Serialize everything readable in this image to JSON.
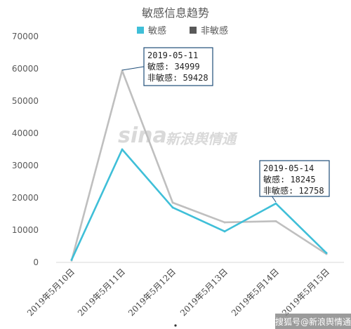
{
  "chart_data": {
    "type": "line",
    "title": "敏感信息趋势",
    "categories": [
      "2019年5月10日",
      "2019年5月11日",
      "2019年5月12日",
      "2019年5月13日",
      "2019年5月14日",
      "2019年5月15日"
    ],
    "series": [
      {
        "name": "敏感",
        "color": "#3fbfd8",
        "values": [
          800,
          34999,
          17000,
          9600,
          18245,
          2900
        ]
      },
      {
        "name": "非敏感",
        "color": "#bfbfbf",
        "values": [
          600,
          59428,
          18500,
          12400,
          12758,
          2600
        ]
      }
    ],
    "legend_swatches": [
      "#3fbfd8",
      "#595959"
    ],
    "yticks": [
      0,
      10000,
      20000,
      30000,
      40000,
      50000,
      60000,
      70000
    ],
    "ylim": [
      0,
      70000
    ],
    "grid": false,
    "legend_position": "top",
    "annotations": [
      {
        "category_index": 1,
        "lines": [
          "2019-05-11",
          "敏感: 34999",
          "非敏感: 59428"
        ]
      },
      {
        "category_index": 4,
        "lines": [
          "2019-05-14",
          "敏感: 18245",
          "非敏感: 12758"
        ]
      }
    ]
  },
  "watermark": {
    "logo_text": "sina",
    "text": "新浪舆情通"
  },
  "footer": {
    "text": "搜狐号@新浪舆情通"
  }
}
